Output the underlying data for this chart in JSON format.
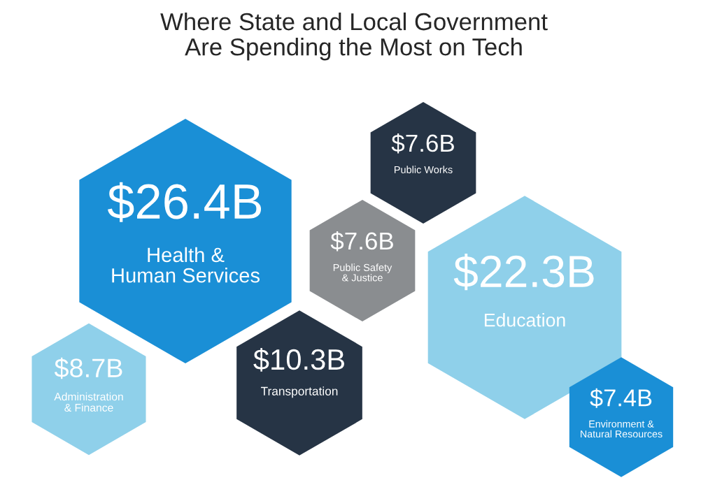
{
  "chart_data": {
    "type": "other",
    "title": "Where State and Local Government\nAre Spending the Most on Tech",
    "categories": [
      "Health &\nHuman Services",
      "Public Works",
      "Public Safety\n& Justice",
      "Education",
      "Administration\n& Finance",
      "Transportation",
      "Environment &\nNatural Resources"
    ],
    "values": [
      26.4,
      7.6,
      7.6,
      22.3,
      8.7,
      10.3,
      7.4
    ],
    "value_labels": [
      "$26.4B",
      "$7.6B",
      "$7.6B",
      "$22.3B",
      "$8.7B",
      "$10.3B",
      "$7.4B"
    ],
    "colors": [
      "#1a8fd6",
      "#263445",
      "#8a8d90",
      "#8fd0ea",
      "#8fd0ea",
      "#263445",
      "#1a8fd6"
    ]
  }
}
